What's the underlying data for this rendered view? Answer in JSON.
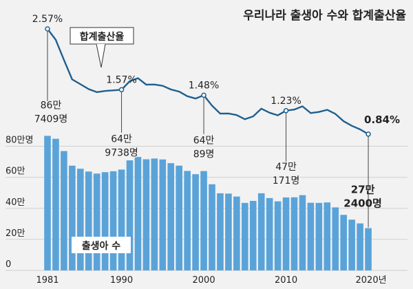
{
  "chart_data": {
    "type": "bar",
    "title": "우리나라 출생아 수와 합계출산율",
    "x": [
      1981,
      1982,
      1983,
      1984,
      1985,
      1986,
      1987,
      1988,
      1989,
      1990,
      1991,
      1992,
      1993,
      1994,
      1995,
      1996,
      1997,
      1998,
      1999,
      2000,
      2001,
      2002,
      2003,
      2004,
      2005,
      2006,
      2007,
      2008,
      2009,
      2010,
      2011,
      2012,
      2013,
      2014,
      2015,
      2016,
      2017,
      2018,
      2019,
      2020
    ],
    "x_tick_labels": [
      "1981",
      "1990",
      "2000",
      "2010",
      "2020년"
    ],
    "x_tick_years": [
      1981,
      1990,
      2000,
      2010,
      2020
    ],
    "y_tick_labels": [
      "0",
      "20만",
      "40만",
      "60만",
      "80만명"
    ],
    "y_tick_values": [
      0,
      20,
      40,
      60,
      80
    ],
    "ylim": [
      0,
      90
    ],
    "grid": true,
    "series": [
      {
        "name": "출생아 수",
        "unit": "만명",
        "type": "bar",
        "color": "#5aa3d9",
        "values": [
          86.7,
          84.8,
          76.9,
          67.5,
          65.5,
          63.7,
          62.4,
          63.3,
          63.9,
          64.97,
          70.9,
          73.1,
          71.6,
          72.1,
          71.5,
          69.1,
          67.5,
          64.1,
          62.0,
          64.0,
          55.5,
          49.7,
          49.5,
          47.6,
          43.5,
          44.8,
          49.7,
          46.6,
          44.5,
          47.0,
          47.1,
          48.5,
          43.6,
          43.5,
          43.8,
          40.6,
          35.8,
          32.7,
          30.3,
          27.24
        ]
      },
      {
        "name": "합계출산율",
        "unit": "명",
        "type": "line",
        "color": "#1f5f8f",
        "values": [
          2.57,
          2.39,
          2.06,
          1.74,
          1.66,
          1.58,
          1.53,
          1.55,
          1.56,
          1.57,
          1.71,
          1.76,
          1.654,
          1.656,
          1.634,
          1.574,
          1.54,
          1.464,
          1.425,
          1.48,
          1.309,
          1.178,
          1.18,
          1.154,
          1.085,
          1.132,
          1.259,
          1.192,
          1.149,
          1.226,
          1.244,
          1.297,
          1.187,
          1.205,
          1.24,
          1.172,
          1.052,
          0.977,
          0.918,
          0.84
        ]
      }
    ],
    "annotations": {
      "rate": [
        {
          "year": 1981,
          "label": "2.57%"
        },
        {
          "year": 1990,
          "label": "1.57%"
        },
        {
          "year": 2000,
          "label": "1.48%"
        },
        {
          "year": 2010,
          "label": "1.23%"
        },
        {
          "year": 2020,
          "label": "0.84%"
        }
      ],
      "births": [
        {
          "year": 1981,
          "lines": [
            "86만",
            "7409명"
          ]
        },
        {
          "year": 1990,
          "lines": [
            "64만",
            "9738명"
          ]
        },
        {
          "year": 2000,
          "lines": [
            "64만",
            "89명"
          ]
        },
        {
          "year": 2010,
          "lines": [
            "47만",
            "171명"
          ]
        },
        {
          "year": 2020,
          "lines": [
            "27만",
            "2400명"
          ]
        }
      ]
    },
    "line_label": "합계출산율",
    "bar_label": "출생아 수"
  }
}
